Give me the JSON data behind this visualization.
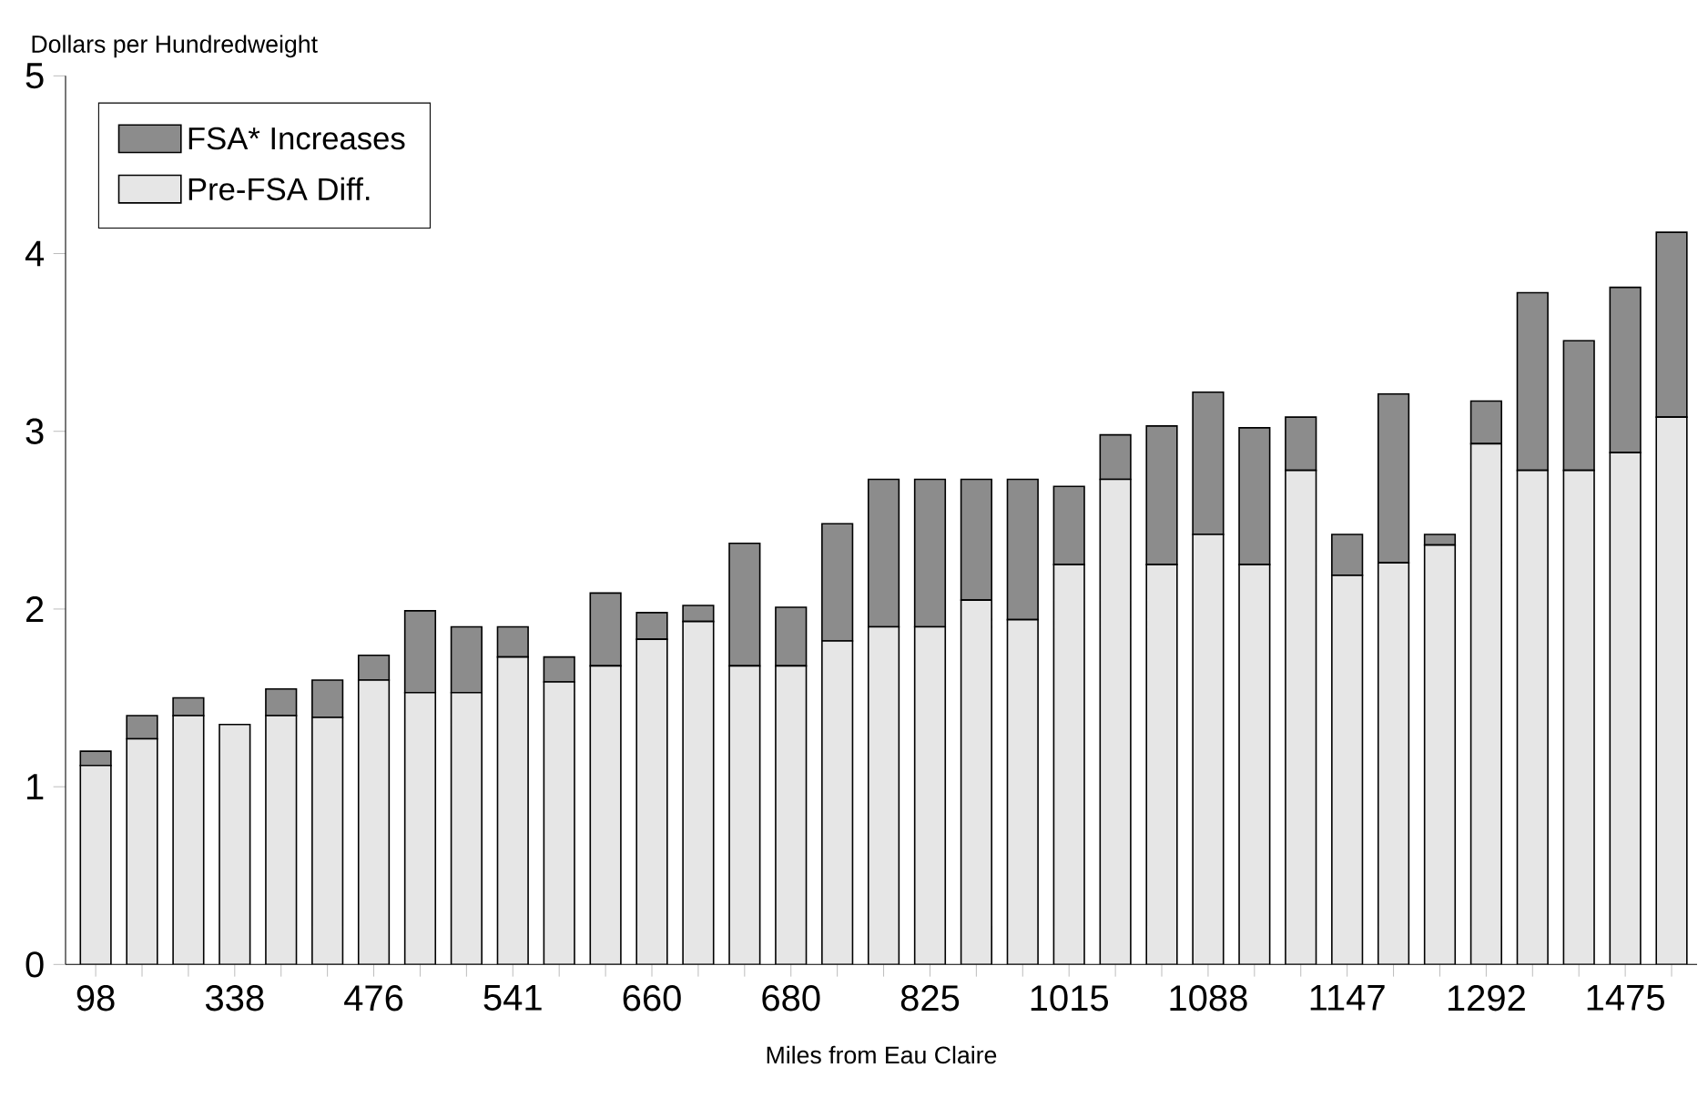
{
  "chart_data": {
    "type": "bar",
    "stacked": true,
    "ylabel": "Dollars per Hundredweight",
    "xlabel": "Miles from Eau Claire",
    "categories": [
      "98",
      null,
      null,
      "338",
      null,
      null,
      "476",
      null,
      null,
      "541",
      null,
      null,
      "660",
      null,
      null,
      "680",
      null,
      null,
      "825",
      null,
      null,
      "1015",
      null,
      null,
      "1088",
      null,
      null,
      "1147",
      null,
      null,
      "1292",
      null,
      null,
      "1475",
      null
    ],
    "series": [
      {
        "name": "Pre-FSA Diff.",
        "color": "#e6e6e6",
        "values": [
          1.12,
          1.27,
          1.4,
          1.35,
          1.4,
          1.39,
          1.6,
          1.53,
          1.53,
          1.73,
          1.59,
          1.68,
          1.83,
          1.93,
          1.68,
          1.68,
          1.82,
          1.9,
          1.9,
          2.05,
          1.94,
          2.25,
          2.73,
          2.25,
          2.42,
          2.25,
          2.78,
          2.19,
          2.26,
          2.36,
          2.93,
          2.78,
          2.78,
          2.88,
          3.08
        ]
      },
      {
        "name": "FSA* Increases",
        "color": "#8c8c8c",
        "values": [
          0.08,
          0.13,
          0.1,
          0,
          0.15,
          0.21,
          0.14,
          0.46,
          0.37,
          0.17,
          0.14,
          0.41,
          0.15,
          0.09,
          0.69,
          0.33,
          0.66,
          0.83,
          0.83,
          0.68,
          0.79,
          0.44,
          0.25,
          0.78,
          0.8,
          0.77,
          0.3,
          0.23,
          0.95,
          0.06,
          0.24,
          1.0,
          0.73,
          0.93,
          1.04
        ]
      }
    ],
    "ylim": [
      0,
      5
    ],
    "yticks": [
      0,
      1,
      2,
      3,
      4,
      5
    ],
    "legend": "top left",
    "grid": false
  }
}
